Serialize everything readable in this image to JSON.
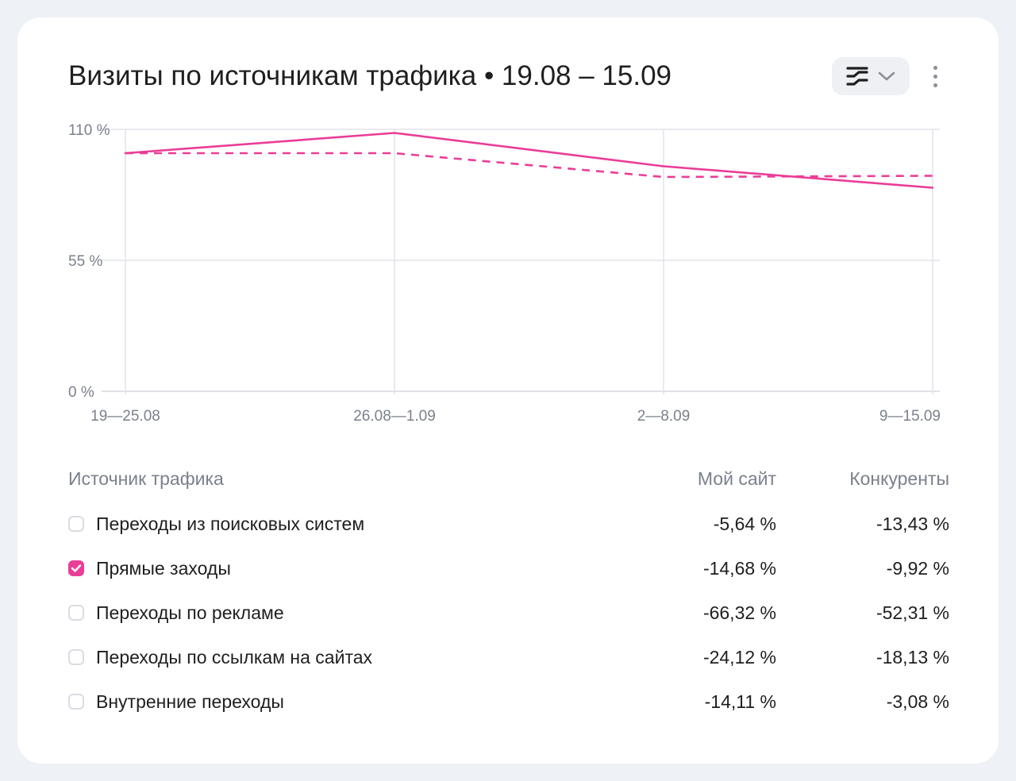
{
  "header": {
    "title": "Визиты по источникам трафика • 19.08 – 15.09",
    "view_toggle_icon": "chart-lines-icon",
    "dropdown_icon": "chevron-down-icon",
    "menu_icon": "more-vertical-icon"
  },
  "colors": {
    "accent": "#ea3d97",
    "grid": "#e2e4ea",
    "muted_text": "#7b808c"
  },
  "chart_data": {
    "type": "line",
    "categories": [
      "19—25.08",
      "26.08—1.09",
      "2—8.09",
      "9—15.09"
    ],
    "y_ticks": [
      "0 %",
      "55 %",
      "110 %"
    ],
    "ylim": [
      0,
      110
    ],
    "grid": true,
    "series": [
      {
        "name": "Мой сайт",
        "style": "solid",
        "values": [
          100,
          108.5,
          94.5,
          85.5
        ]
      },
      {
        "name": "Конкуренты",
        "style": "dashed",
        "values": [
          100,
          100,
          90,
          90.5
        ]
      }
    ]
  },
  "table": {
    "headers": {
      "source": "Источник трафика",
      "mine": "Мой сайт",
      "competitors": "Конкуренты"
    },
    "rows": [
      {
        "label": "Переходы из поисковых систем",
        "mine": "-5,64 %",
        "competitors": "-13,43 %",
        "checked": false
      },
      {
        "label": "Прямые заходы",
        "mine": "-14,68 %",
        "competitors": "-9,92 %",
        "checked": true
      },
      {
        "label": "Переходы по рекламе",
        "mine": "-66,32 %",
        "competitors": "-52,31 %",
        "checked": false
      },
      {
        "label": "Переходы по ссылкам на сайтах",
        "mine": "-24,12 %",
        "competitors": "-18,13 %",
        "checked": false
      },
      {
        "label": "Внутренние переходы",
        "mine": "-14,11 %",
        "competitors": "-3,08 %",
        "checked": false
      }
    ]
  }
}
